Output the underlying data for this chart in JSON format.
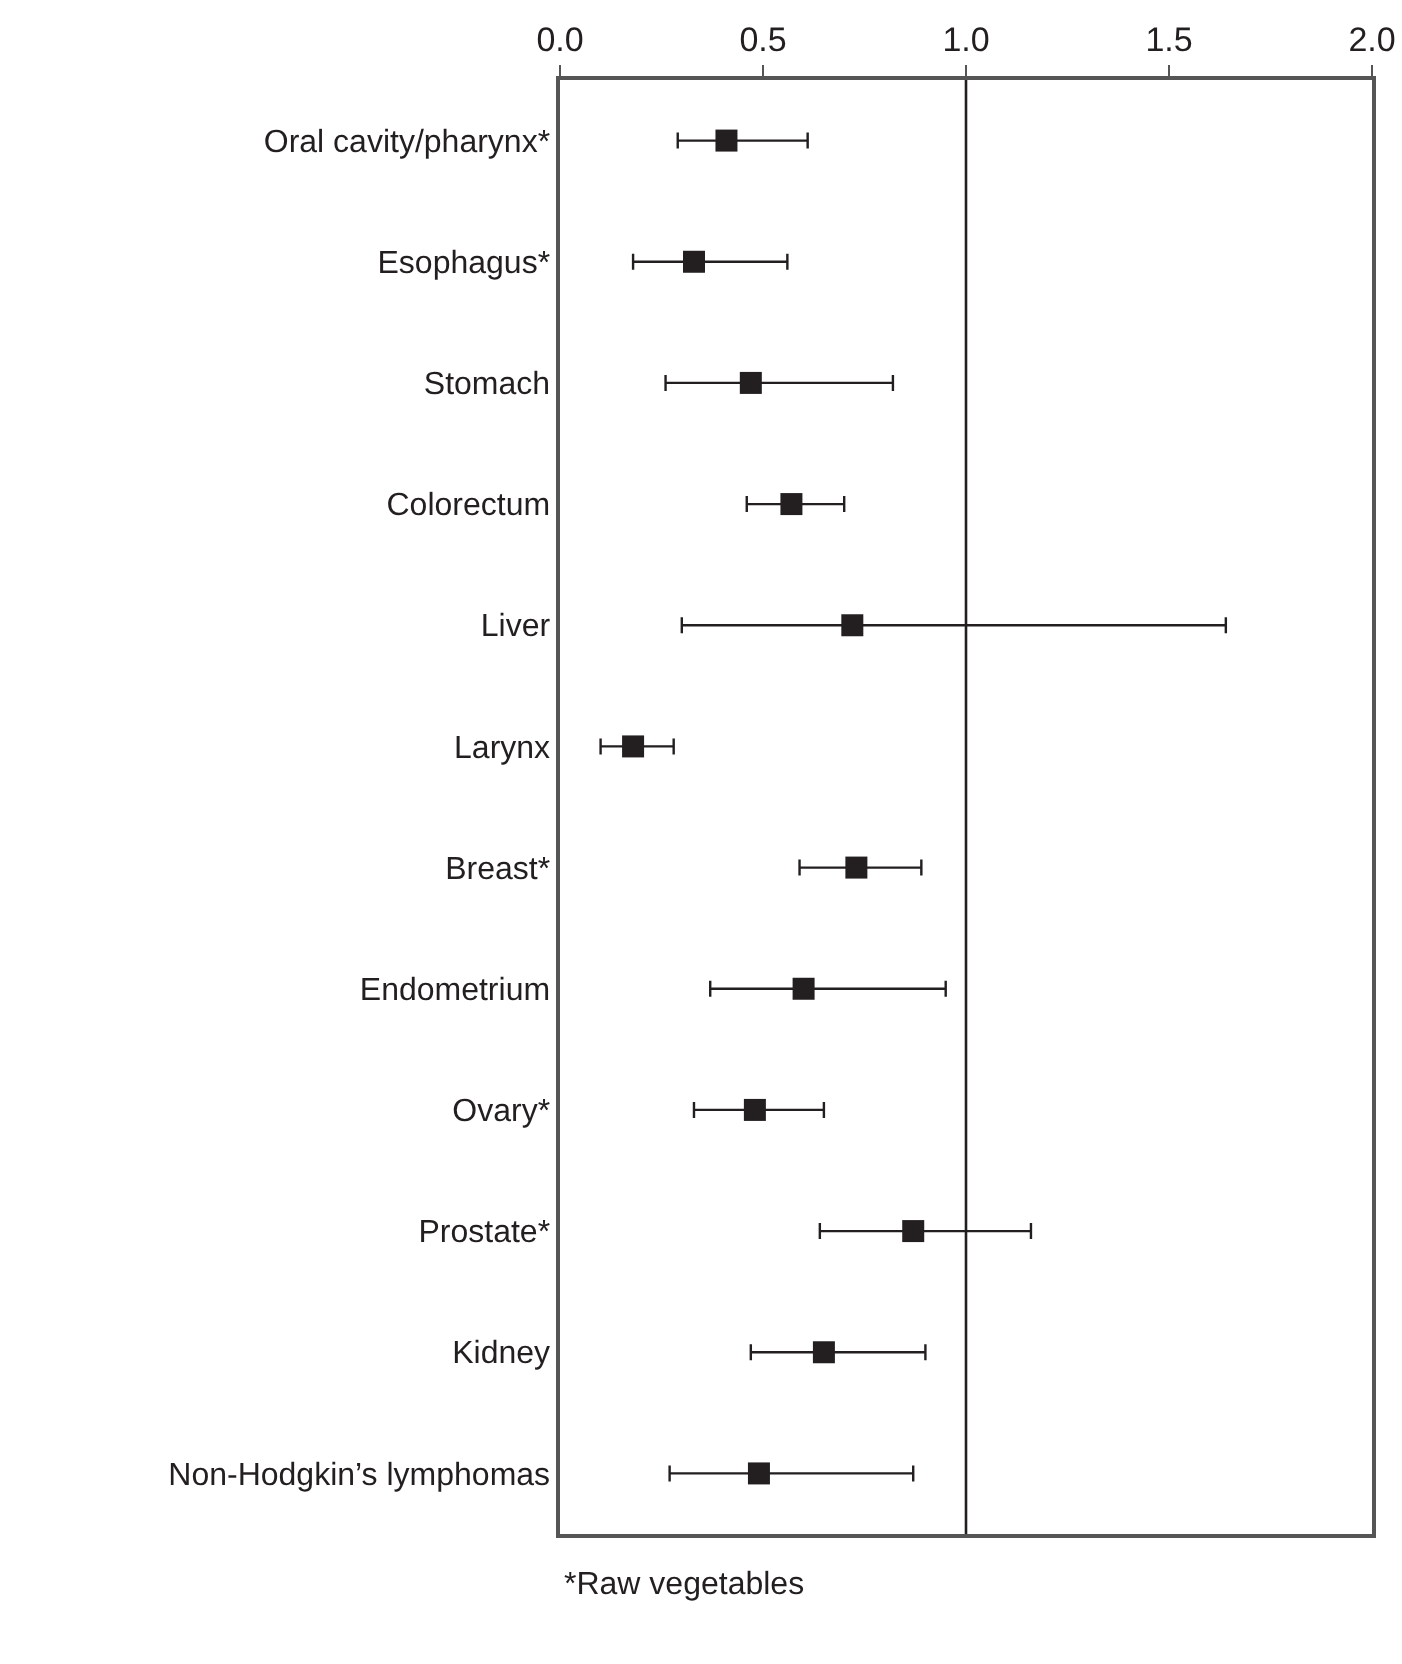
{
  "chart_data": {
    "type": "scatter",
    "orientation": "horizontal",
    "marker": "square",
    "grid": false,
    "categories": [
      "Oral cavity/pharynx*",
      "Esophagus*",
      "Stomach",
      "Colorectum",
      "Liver",
      "Larynx",
      "Breast*",
      "Endometrium",
      "Ovary*",
      "Prostate*",
      "Kidney",
      "Non-Hodgkin’s lymphomas"
    ],
    "values": [
      0.41,
      0.33,
      0.47,
      0.57,
      0.72,
      0.18,
      0.73,
      0.6,
      0.48,
      0.87,
      0.65,
      0.49
    ],
    "errors": [
      [
        0.29,
        0.61
      ],
      [
        0.18,
        0.56
      ],
      [
        0.26,
        0.82
      ],
      [
        0.46,
        0.7
      ],
      [
        0.3,
        1.64
      ],
      [
        0.1,
        0.28
      ],
      [
        0.59,
        0.89
      ],
      [
        0.37,
        0.95
      ],
      [
        0.33,
        0.65
      ],
      [
        0.64,
        1.16
      ],
      [
        0.47,
        0.9
      ],
      [
        0.27,
        0.87
      ]
    ],
    "color": "#231f20",
    "xlim": [
      0,
      2
    ],
    "xticks": [
      {
        "value": 0,
        "label": "0.0"
      },
      {
        "value": 0.5,
        "label": "0.5"
      },
      {
        "value": 1,
        "label": "1.0"
      },
      {
        "value": 1.5,
        "label": "1.5"
      },
      {
        "value": 2,
        "label": "2.0"
      }
    ],
    "ref_lines": [
      {
        "axis": "x",
        "value": 1,
        "color": "#231f20"
      }
    ],
    "annotations": [
      "*Raw vegetables"
    ]
  }
}
